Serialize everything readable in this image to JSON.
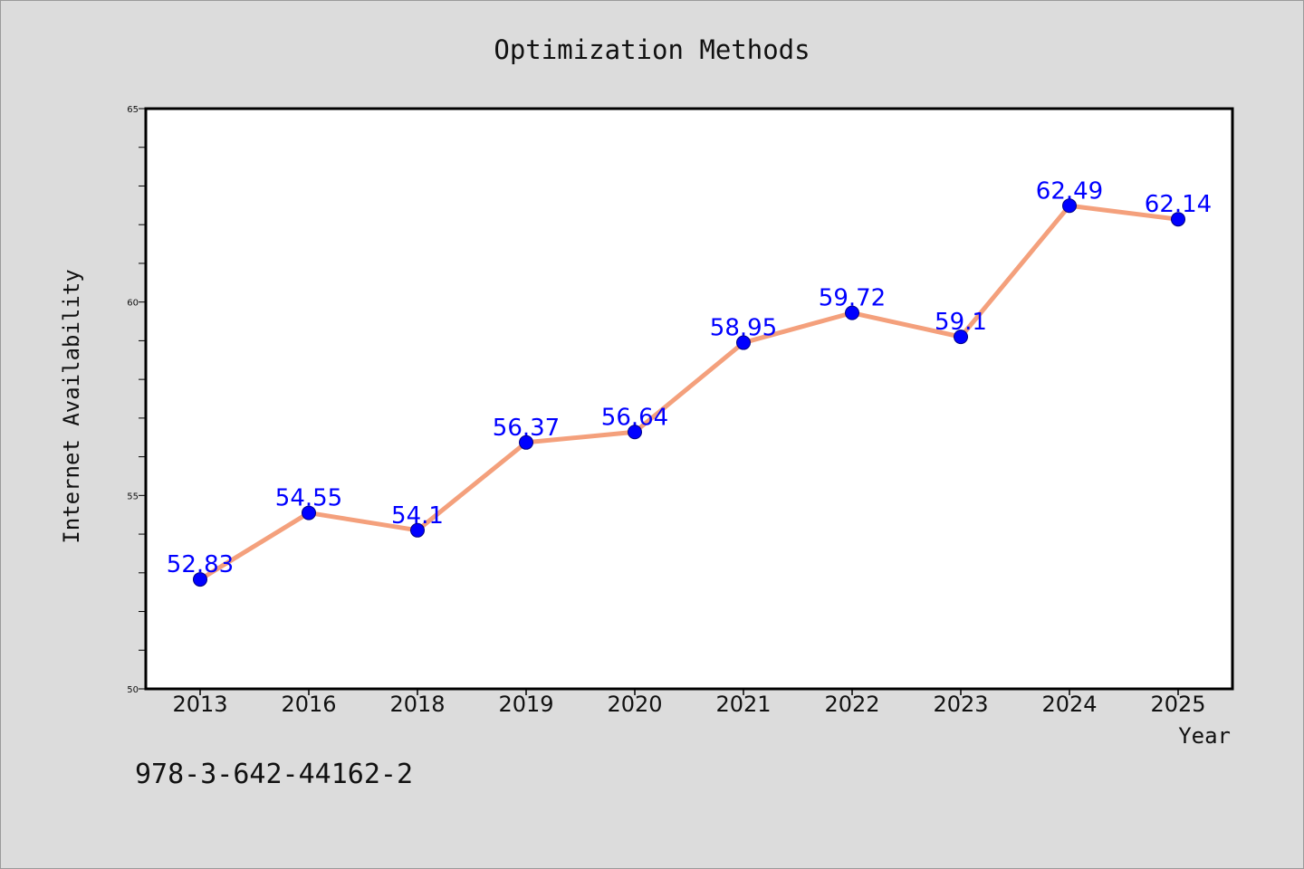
{
  "colors": {
    "background": "#dcdcdc",
    "plot_background": "#ffffff",
    "line": "#f4a07c",
    "marker": "#0000ff",
    "data_label": "#0000ff",
    "axis": "#000000"
  },
  "footer": {
    "isbn": "978-3-642-44162-2"
  },
  "chart_data": {
    "type": "line",
    "title": "Optimization Methods",
    "xlabel": "Year",
    "ylabel": "Internet Availability",
    "categories": [
      "2013",
      "2016",
      "2018",
      "2019",
      "2020",
      "2021",
      "2022",
      "2023",
      "2024",
      "2025"
    ],
    "series": [
      {
        "values": [
          52.83,
          54.55,
          54.1,
          56.37,
          56.64,
          58.95,
          59.72,
          59.1,
          62.49,
          62.14
        ],
        "data_labels": [
          "52.83",
          "54.55",
          "54.1",
          "56.37",
          "56.64",
          "58.95",
          "59.72",
          "59.1",
          "62.49",
          "62.14"
        ]
      }
    ],
    "ylim": [
      50,
      65
    ],
    "yticks": [
      "50",
      "55",
      "60",
      "65"
    ],
    "y_minor_step": 1,
    "grid": false,
    "legend": "none",
    "markers": "circle"
  }
}
